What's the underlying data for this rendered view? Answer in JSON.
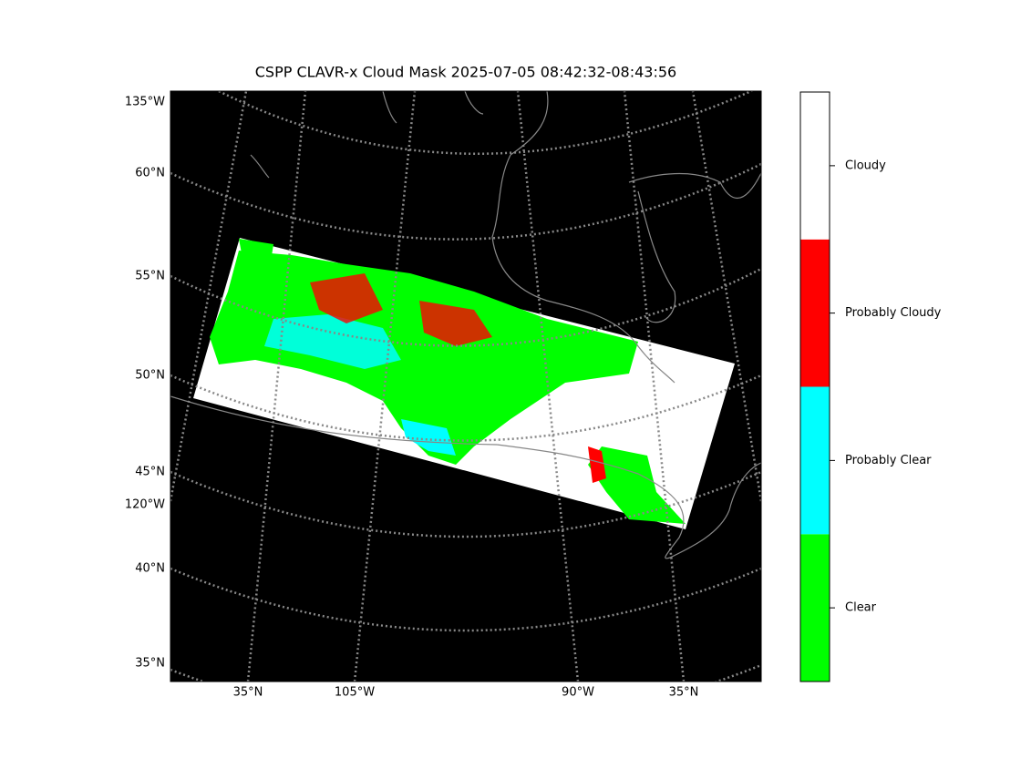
{
  "title": "CSPP CLAVR-x Cloud Mask 2025-07-05 08:42:32-08:43:56",
  "left_labels": [
    "135°W",
    "60°N",
    "55°N",
    "50°N",
    "45°N",
    "120°W",
    "40°N",
    "35°N"
  ],
  "bottom_labels": [
    "35°N",
    "105°W",
    "90°W",
    "35°N"
  ],
  "colorbar": {
    "categories": [
      "Clear",
      "Probably Clear",
      "Probably Cloudy",
      "Cloudy"
    ],
    "colors": [
      "#00ff00",
      "#00ffff",
      "#ff0000",
      "#ffffff"
    ]
  }
}
